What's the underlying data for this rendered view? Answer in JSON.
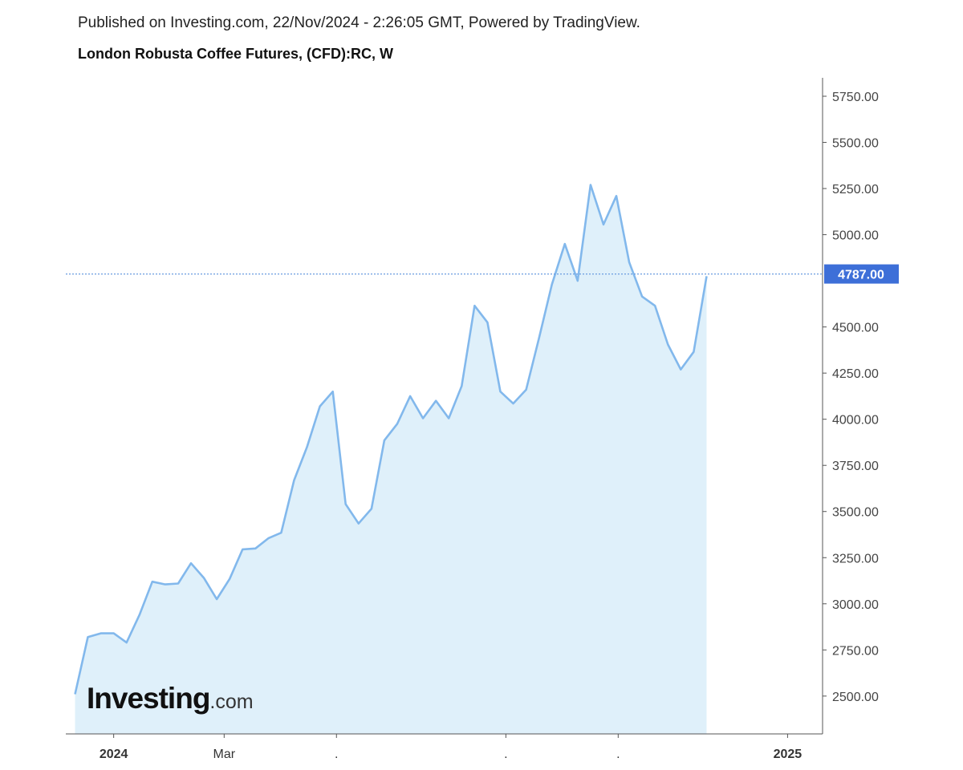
{
  "header": {
    "published": "Published on Investing.com, 22/Nov/2024 - 2:26:05 GMT, Powered by TradingView.",
    "title": "London Robusta Coffee Futures, (CFD):RC, W"
  },
  "logo": {
    "brand": "Investing",
    "tld": ".com"
  },
  "colors": {
    "line": "#82b8ec",
    "area": "#dff0fa",
    "last_price_bg": "#3d6fd8",
    "last_price_text": "#ffffff",
    "axis": "#555555",
    "price_line": "#6a9ce0"
  },
  "chart_data": {
    "type": "area",
    "title": "London Robusta Coffee Futures, (CFD):RC, W",
    "interval": "W",
    "last_price": 4787.0,
    "last_price_label": "4787.00",
    "y_tick_labels": [
      "2500.00",
      "2750.00",
      "3000.00",
      "3250.00",
      "3500.00",
      "3750.00",
      "4000.00",
      "4250.00",
      "4500.00",
      "5000.00",
      "5250.00",
      "5500.00",
      "5750.00"
    ],
    "y_tick_values": [
      2500,
      2750,
      3000,
      3250,
      3500,
      3750,
      4000,
      4250,
      4500,
      5000,
      5250,
      5500,
      5750
    ],
    "ylim": [
      2295,
      5850
    ],
    "x_tick_labels": [
      {
        "label": "2024",
        "date": "2024-01-01",
        "bold": true
      },
      {
        "label": "Mar",
        "date": "2024-03-01",
        "bold": false
      },
      {
        "label": ".",
        "date": "2024-05-01",
        "bold": false
      },
      {
        "label": ".",
        "date": "2024-08-01",
        "bold": false
      },
      {
        "label": ".",
        "date": "2024-10-01",
        "bold": false
      },
      {
        "label": "2025",
        "date": "2025-01-01",
        "bold": true
      }
    ],
    "xlim": [
      "2023-12-06",
      "2025-01-20"
    ],
    "grid": false,
    "series": [
      {
        "x": [
          "2023-12-11",
          "2023-12-18",
          "2023-12-25",
          "2024-01-01",
          "2024-01-08",
          "2024-01-15",
          "2024-01-22",
          "2024-01-29",
          "2024-02-05",
          "2024-02-12",
          "2024-02-19",
          "2024-02-26",
          "2024-03-04",
          "2024-03-11",
          "2024-03-18",
          "2024-03-25",
          "2024-04-01",
          "2024-04-08",
          "2024-04-15",
          "2024-04-22",
          "2024-04-29",
          "2024-05-06",
          "2024-05-13",
          "2024-05-20",
          "2024-05-27",
          "2024-06-03",
          "2024-06-10",
          "2024-06-17",
          "2024-06-24",
          "2024-07-01",
          "2024-07-08",
          "2024-07-15",
          "2024-07-22",
          "2024-07-29",
          "2024-08-05",
          "2024-08-12",
          "2024-08-19",
          "2024-08-26",
          "2024-09-02",
          "2024-09-09",
          "2024-09-16",
          "2024-09-23",
          "2024-09-30",
          "2024-10-07",
          "2024-10-14",
          "2024-10-21",
          "2024-10-28",
          "2024-11-04",
          "2024-11-11",
          "2024-11-18"
        ],
        "values": [
          2510,
          2820,
          2840,
          2840,
          2790,
          2940,
          3120,
          3105,
          3110,
          3220,
          3140,
          3025,
          3135,
          3295,
          3300,
          3355,
          3385,
          3670,
          3850,
          4070,
          4150,
          3540,
          3435,
          3515,
          3885,
          3975,
          4125,
          4005,
          4100,
          4005,
          4180,
          4615,
          4525,
          4150,
          4085,
          4160,
          4440,
          4730,
          4950,
          4750,
          5270,
          5055,
          5210,
          4850,
          4665,
          4615,
          4405,
          4270,
          4365,
          4775
        ]
      }
    ]
  }
}
